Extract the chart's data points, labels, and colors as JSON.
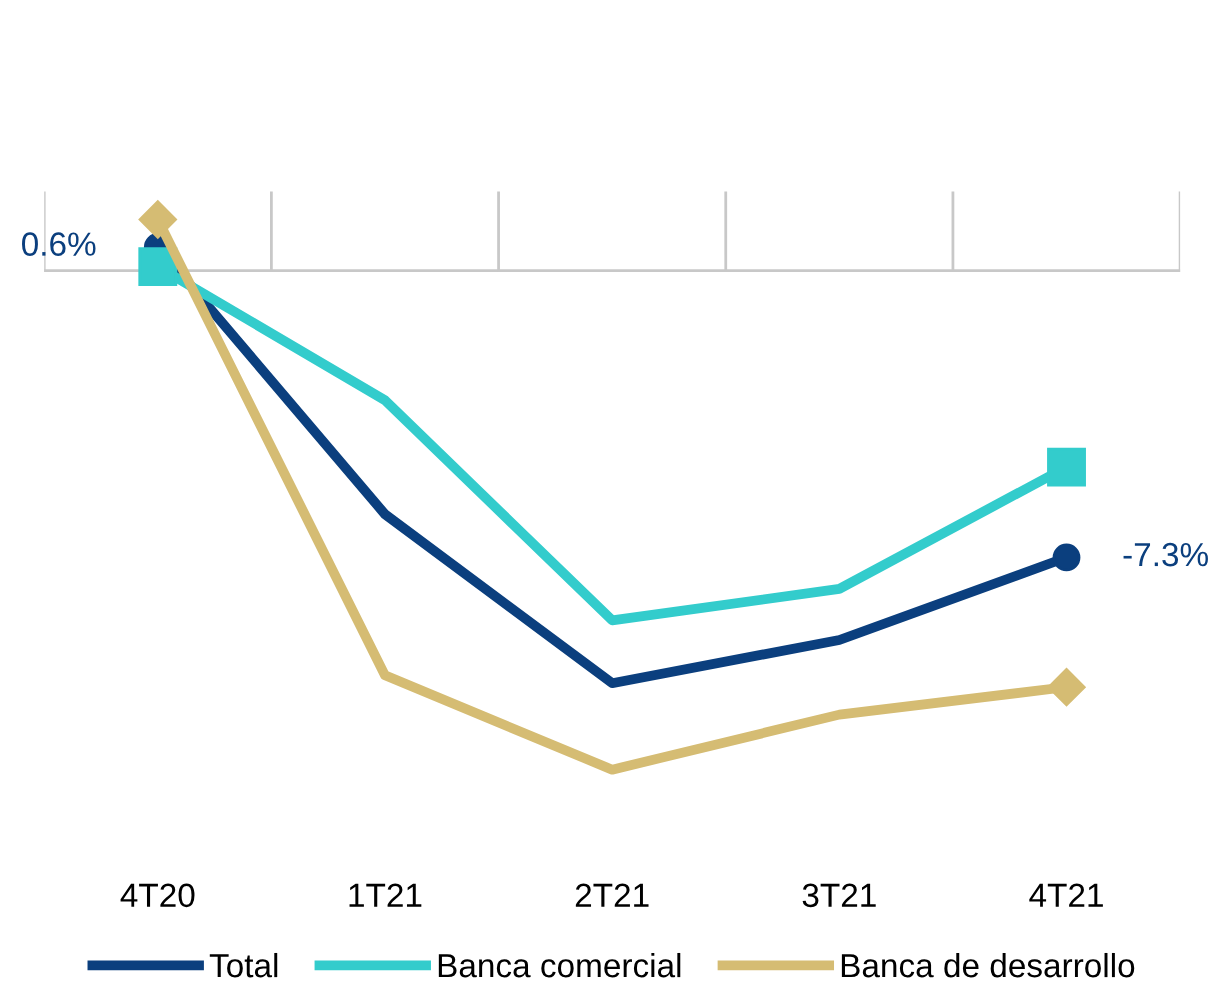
{
  "chart_data": {
    "type": "line",
    "categories": [
      "4T20",
      "1T21",
      "2T21",
      "3T21",
      "4T21"
    ],
    "series": [
      {
        "name": "Total",
        "color": "#0b3f7e",
        "values": [
          0.6,
          -6.2,
          -10.5,
          -9.4,
          -7.3
        ],
        "value_labels": [
          "0.6%",
          null,
          null,
          null,
          "-7.3%"
        ]
      },
      {
        "name": "Banca comercial",
        "color": "#33cccc",
        "values": [
          0.1,
          -3.3,
          -8.9,
          -8.1,
          -5.0
        ]
      },
      {
        "name": "Banca de desarrollo",
        "color": "#d5bc73",
        "values": [
          1.3,
          -10.3,
          -12.7,
          -11.3,
          -10.6
        ]
      }
    ],
    "ref_lines": [
      {
        "axis": "y",
        "value": 0,
        "color": "#c8c8c8"
      }
    ],
    "tick_labels": "x",
    "legend": "bottom",
    "grid": false
  }
}
